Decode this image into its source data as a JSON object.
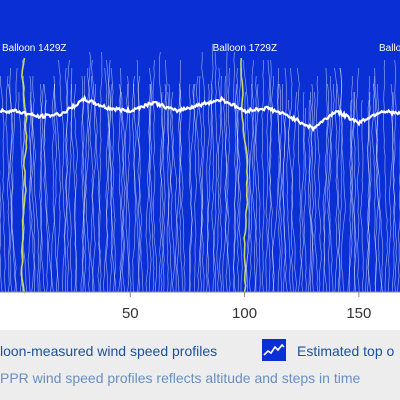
{
  "chart_data": {
    "type": "line",
    "xlim": [
      -7,
      168
    ],
    "ylim": [
      0,
      1
    ],
    "x_ticks": [
      "50",
      "100",
      "150"
    ],
    "x_tick_values": [
      50,
      100,
      150
    ],
    "grid": false,
    "colors": {
      "background": "#0a2fd4",
      "profiles": "#ffffff",
      "balloon": "#c8d860",
      "top": "#ffffff"
    },
    "balloon_labels": [
      {
        "label": "Balloon 1429Z",
        "x": 4
      },
      {
        "label": "Balloon 1729Z",
        "x": 100
      },
      {
        "label": "Balloon",
        "x": 160
      }
    ],
    "estimated_top": {
      "name": "Estimated top o",
      "x": [
        -7,
        0,
        10,
        20,
        30,
        40,
        50,
        60,
        70,
        80,
        90,
        100,
        110,
        120,
        130,
        140,
        150,
        160,
        168
      ],
      "y": [
        0.62,
        0.62,
        0.6,
        0.61,
        0.66,
        0.63,
        0.62,
        0.65,
        0.62,
        0.64,
        0.66,
        0.62,
        0.63,
        0.6,
        0.56,
        0.62,
        0.58,
        0.62,
        0.61
      ]
    }
  },
  "legend": {
    "balloon_text": "loon-measured wind speed profiles",
    "top_text": "Estimated top o",
    "caption": "PPR wind speed profiles reflects altitude and steps in time"
  }
}
